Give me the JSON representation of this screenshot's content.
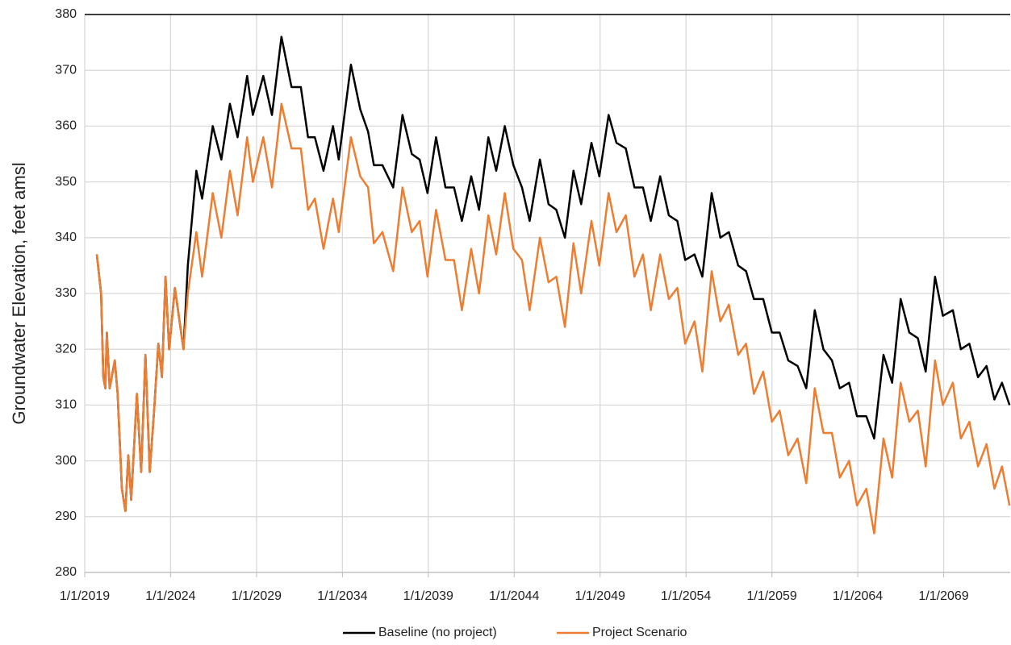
{
  "chart_data": {
    "type": "line",
    "y_label": "Groundwater Elevation, feet amsl",
    "x": [
      "2019-09-15",
      "2019-12-15",
      "2020-02-01",
      "2020-03-15",
      "2020-04-15",
      "2020-06-15",
      "2020-10-01",
      "2020-12-01",
      "2021-03-01",
      "2021-05-15",
      "2021-07-15",
      "2021-09-15",
      "2022-01-15",
      "2022-04-15",
      "2022-07-15",
      "2022-10-15",
      "2023-01-15",
      "2023-04-15",
      "2023-07-01",
      "2023-09-15",
      "2023-12-01",
      "2024-04-01",
      "2024-10-01",
      "2025-01-01",
      "2025-07-01",
      "2025-11-01",
      "2026-06-15",
      "2026-12-15",
      "2027-06-15",
      "2027-11-25",
      "2028-06-15",
      "2028-10-15",
      "2029-05-25",
      "2029-11-25",
      "2030-06-15",
      "2031-01-15",
      "2031-08-01",
      "2032-01-01",
      "2032-05-25",
      "2032-11-25",
      "2033-06-15",
      "2033-10-15",
      "2034-07-01",
      "2035-01-15",
      "2035-07-01",
      "2035-11-01",
      "2036-05-01",
      "2036-12-15",
      "2037-07-01",
      "2038-01-15",
      "2038-07-01",
      "2038-12-15",
      "2039-06-15",
      "2040-01-01",
      "2040-07-01",
      "2040-12-15",
      "2041-07-01",
      "2041-12-15",
      "2042-07-01",
      "2042-12-15",
      "2043-06-15",
      "2043-12-15",
      "2044-06-15",
      "2044-11-25",
      "2045-07-01",
      "2046-01-01",
      "2046-06-15",
      "2046-12-15",
      "2047-06-15",
      "2047-11-25",
      "2048-07-01",
      "2048-12-15",
      "2049-07-01",
      "2049-12-15",
      "2050-07-01",
      "2051-01-01",
      "2051-07-01",
      "2051-12-15",
      "2052-07-01",
      "2053-01-01",
      "2053-07-01",
      "2053-12-15",
      "2054-07-01",
      "2054-12-15",
      "2055-07-01",
      "2056-01-01",
      "2056-07-01",
      "2057-01-15",
      "2057-07-01",
      "2057-12-15",
      "2058-07-01",
      "2059-01-01",
      "2059-06-15",
      "2059-12-15",
      "2060-07-01",
      "2061-01-01",
      "2061-07-01",
      "2062-01-01",
      "2062-07-01",
      "2062-12-15",
      "2063-07-01",
      "2063-12-15",
      "2064-07-01",
      "2064-12-15",
      "2065-07-01",
      "2066-01-01",
      "2066-07-01",
      "2067-01-01",
      "2067-07-01",
      "2067-12-15",
      "2068-07-01",
      "2068-12-15",
      "2069-07-15",
      "2070-01-01",
      "2070-07-01",
      "2071-01-01",
      "2071-07-01",
      "2071-12-15",
      "2072-05-25",
      "2072-11-01"
    ],
    "series": [
      {
        "name": "Baseline (no project)",
        "color": "#000000",
        "values": [
          337,
          330,
          315,
          313,
          323,
          313,
          318,
          312,
          295,
          291,
          301,
          293,
          312,
          298,
          319,
          298,
          309,
          321,
          315,
          333,
          320,
          331,
          320,
          335,
          352,
          347,
          360,
          354,
          364,
          358,
          369,
          362,
          369,
          362,
          376,
          367,
          367,
          358,
          358,
          352,
          360,
          354,
          371,
          363,
          359,
          353,
          353,
          349,
          362,
          355,
          354,
          348,
          358,
          349,
          349,
          343,
          351,
          345,
          358,
          352,
          360,
          353,
          349,
          343,
          354,
          346,
          345,
          340,
          352,
          346,
          357,
          351,
          362,
          357,
          356,
          349,
          349,
          343,
          351,
          344,
          343,
          336,
          337,
          333,
          348,
          340,
          341,
          335,
          334,
          329,
          329,
          323,
          323,
          318,
          317,
          313,
          327,
          320,
          318,
          313,
          314,
          308,
          308,
          304,
          319,
          314,
          329,
          323,
          322,
          316,
          333,
          326,
          327,
          320,
          321,
          315,
          317,
          311,
          314,
          310
        ]
      },
      {
        "name": "Project Scenario",
        "color": "#ed7d31",
        "values": [
          337,
          330,
          315,
          313,
          323,
          313,
          318,
          312,
          295,
          291,
          301,
          293,
          312,
          298,
          319,
          298,
          309,
          321,
          315,
          333,
          320,
          331,
          320,
          330,
          341,
          333,
          348,
          340,
          352,
          344,
          358,
          350,
          358,
          349,
          364,
          356,
          356,
          345,
          347,
          338,
          347,
          341,
          358,
          351,
          349,
          339,
          341,
          334,
          349,
          341,
          343,
          333,
          345,
          336,
          336,
          327,
          338,
          330,
          344,
          337,
          348,
          338,
          336,
          327,
          340,
          332,
          333,
          324,
          339,
          330,
          343,
          335,
          348,
          341,
          344,
          333,
          337,
          327,
          337,
          329,
          331,
          321,
          325,
          316,
          334,
          325,
          328,
          319,
          321,
          312,
          316,
          307,
          309,
          301,
          304,
          296,
          313,
          305,
          305,
          297,
          300,
          292,
          295,
          287,
          304,
          297,
          314,
          307,
          309,
          299,
          318,
          310,
          314,
          304,
          307,
          299,
          303,
          295,
          299,
          292
        ]
      }
    ],
    "xlim": [
      "2019-01-01",
      "2072-11-15"
    ],
    "xticks": [
      {
        "value": "2019-01-01",
        "label": "1/1/2019"
      },
      {
        "value": "2024-01-01",
        "label": "1/1/2024"
      },
      {
        "value": "2029-01-01",
        "label": "1/1/2029"
      },
      {
        "value": "2034-01-01",
        "label": "1/1/2034"
      },
      {
        "value": "2039-01-01",
        "label": "1/1/2039"
      },
      {
        "value": "2044-01-01",
        "label": "1/1/2044"
      },
      {
        "value": "2049-01-01",
        "label": "1/1/2049"
      },
      {
        "value": "2054-01-01",
        "label": "1/1/2054"
      },
      {
        "value": "2059-01-01",
        "label": "1/1/2059"
      },
      {
        "value": "2064-01-01",
        "label": "1/1/2064"
      },
      {
        "value": "2069-01-01",
        "label": "1/1/2069"
      }
    ],
    "ylim": [
      280,
      380
    ],
    "yticks": [
      280,
      290,
      300,
      310,
      320,
      330,
      340,
      350,
      360,
      370,
      380
    ],
    "grid": true,
    "legend": "bottom"
  }
}
